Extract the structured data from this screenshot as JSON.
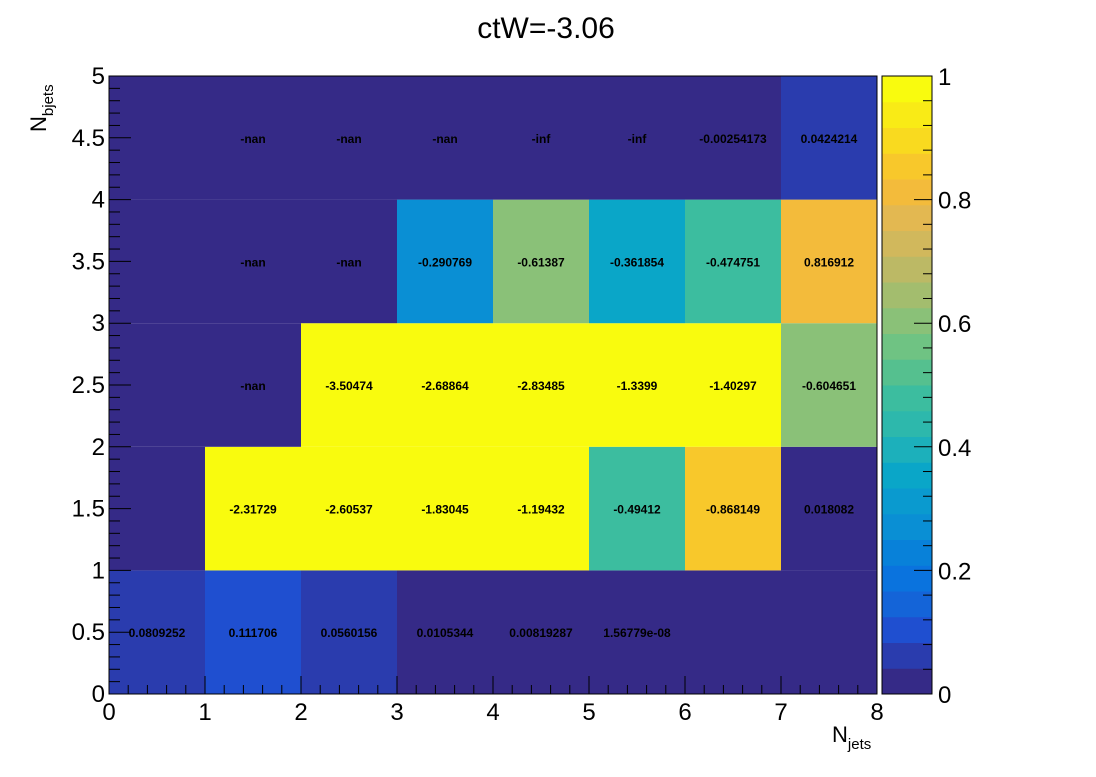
{
  "chart_data": {
    "type": "heatmap",
    "title": "ctW=-3.06",
    "xlabel": "N",
    "xlabel_sub": "jets",
    "ylabel": "N",
    "ylabel_sub": "bjets",
    "x_edges": [
      0,
      1,
      2,
      3,
      4,
      5,
      6,
      7,
      8
    ],
    "y_edges": [
      0,
      1,
      2,
      3,
      4,
      5
    ],
    "xlim": [
      0,
      8
    ],
    "ylim": [
      0,
      5
    ],
    "x_ticks": [
      "0",
      "1",
      "2",
      "3",
      "4",
      "5",
      "6",
      "7",
      "8"
    ],
    "y_ticks": [
      "0",
      "0.5",
      "1",
      "1.5",
      "2",
      "2.5",
      "3",
      "3.5",
      "4",
      "4.5",
      "5"
    ],
    "colorbar": {
      "range": [
        0,
        1
      ],
      "ticks": [
        "0",
        "0.2",
        "0.4",
        "0.6",
        "0.8",
        "1"
      ],
      "palette": [
        "#352a87",
        "#2a3cae",
        "#1f4fd0",
        "#1464d8",
        "#0a73de",
        "#0881d9",
        "#0a8fd4",
        "#0a9acf",
        "#0aa6c8",
        "#1cb0bb",
        "#2db8ac",
        "#3cbd9f",
        "#55c08f",
        "#6fc383",
        "#8ac178",
        "#a3bd6e",
        "#bcb965",
        "#d1b85c",
        "#e3b851",
        "#f3bb3b",
        "#f8c82b",
        "#f9da1f",
        "#f9eb16",
        "#f9fb0e"
      ]
    },
    "cells": [
      {
        "x": 0,
        "y": 0,
        "color_value": 0.0809252,
        "label": "0.0809252"
      },
      {
        "x": 1,
        "y": 0,
        "color_value": 0.111706,
        "label": "0.111706"
      },
      {
        "x": 2,
        "y": 0,
        "color_value": 0.0560156,
        "label": "0.0560156"
      },
      {
        "x": 3,
        "y": 0,
        "color_value": 0.0105344,
        "label": "0.0105344"
      },
      {
        "x": 4,
        "y": 0,
        "color_value": 0.00819287,
        "label": "0.00819287"
      },
      {
        "x": 5,
        "y": 0,
        "color_value": 1.56779e-08,
        "label": "1.56779e-08"
      },
      {
        "x": 6,
        "y": 0,
        "color_value": 0.0,
        "label": ""
      },
      {
        "x": 7,
        "y": 0,
        "color_value": 0.0,
        "label": ""
      },
      {
        "x": 0,
        "y": 1,
        "color_value": 0.0,
        "label": ""
      },
      {
        "x": 1,
        "y": 1,
        "color_value": 1.0,
        "label": "-2.31729"
      },
      {
        "x": 2,
        "y": 1,
        "color_value": 1.0,
        "label": "-2.60537"
      },
      {
        "x": 3,
        "y": 1,
        "color_value": 1.0,
        "label": "-1.83045"
      },
      {
        "x": 4,
        "y": 1,
        "color_value": 1.0,
        "label": "-1.19432"
      },
      {
        "x": 5,
        "y": 1,
        "color_value": 0.49412,
        "label": "-0.49412"
      },
      {
        "x": 6,
        "y": 1,
        "color_value": 0.868149,
        "label": "-0.868149"
      },
      {
        "x": 7,
        "y": 1,
        "color_value": 0.018082,
        "label": "0.018082"
      },
      {
        "x": 0,
        "y": 2,
        "color_value": 0.0,
        "label": ""
      },
      {
        "x": 1,
        "y": 2,
        "color_value": -1,
        "label": "-nan"
      },
      {
        "x": 2,
        "y": 2,
        "color_value": 1.0,
        "label": "-3.50474"
      },
      {
        "x": 3,
        "y": 2,
        "color_value": 1.0,
        "label": "-2.68864"
      },
      {
        "x": 4,
        "y": 2,
        "color_value": 1.0,
        "label": "-2.83485"
      },
      {
        "x": 5,
        "y": 2,
        "color_value": 1.0,
        "label": "-1.3399"
      },
      {
        "x": 6,
        "y": 2,
        "color_value": 1.0,
        "label": "-1.40297"
      },
      {
        "x": 7,
        "y": 2,
        "color_value": 0.604651,
        "label": "-0.604651"
      },
      {
        "x": 0,
        "y": 3,
        "color_value": 0.0,
        "label": ""
      },
      {
        "x": 1,
        "y": 3,
        "color_value": -1,
        "label": "-nan"
      },
      {
        "x": 2,
        "y": 3,
        "color_value": -1,
        "label": "-nan"
      },
      {
        "x": 3,
        "y": 3,
        "color_value": 0.290769,
        "label": "-0.290769"
      },
      {
        "x": 4,
        "y": 3,
        "color_value": 0.61387,
        "label": "-0.61387"
      },
      {
        "x": 5,
        "y": 3,
        "color_value": 0.361854,
        "label": "-0.361854"
      },
      {
        "x": 6,
        "y": 3,
        "color_value": 0.474751,
        "label": "-0.474751"
      },
      {
        "x": 7,
        "y": 3,
        "color_value": 0.816912,
        "label": "0.816912"
      },
      {
        "x": 0,
        "y": 4,
        "color_value": 0.0,
        "label": ""
      },
      {
        "x": 1,
        "y": 4,
        "color_value": -1,
        "label": "-nan"
      },
      {
        "x": 2,
        "y": 4,
        "color_value": -1,
        "label": "-nan"
      },
      {
        "x": 3,
        "y": 4,
        "color_value": -1,
        "label": "-nan"
      },
      {
        "x": 4,
        "y": 4,
        "color_value": -1,
        "label": "-inf"
      },
      {
        "x": 5,
        "y": 4,
        "color_value": -1,
        "label": "-inf"
      },
      {
        "x": 6,
        "y": 4,
        "color_value": 0.0,
        "label": "-0.00254173"
      },
      {
        "x": 7,
        "y": 4,
        "color_value": 0.0424214,
        "label": "0.0424214"
      }
    ]
  }
}
